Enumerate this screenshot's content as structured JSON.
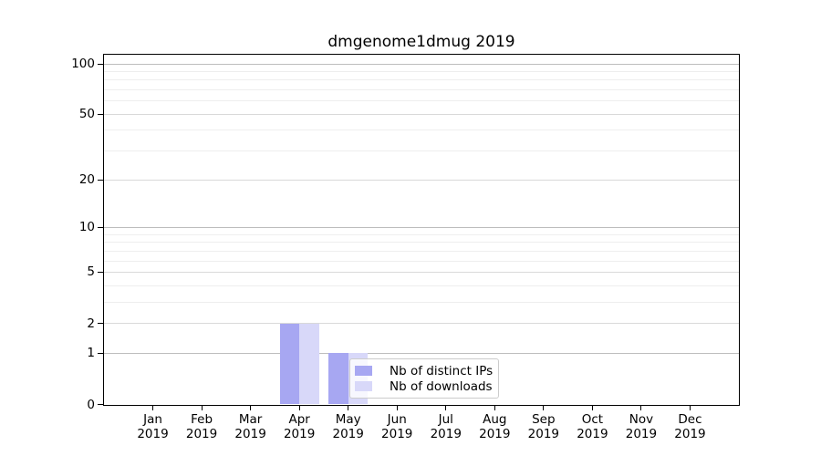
{
  "chart_data": {
    "type": "bar",
    "title": "dmgenome1dmug 2019",
    "categories": [
      "Jan 2019",
      "Feb 2019",
      "Mar 2019",
      "Apr 2019",
      "May 2019",
      "Jun 2019",
      "Jul 2019",
      "Aug 2019",
      "Sep 2019",
      "Oct 2019",
      "Nov 2019",
      "Dec 2019"
    ],
    "series": [
      {
        "name": "Nb of distinct IPs",
        "color": "#a7a7f2",
        "values": [
          0,
          0,
          0,
          2,
          1,
          0,
          0,
          0,
          0,
          0,
          0,
          0
        ]
      },
      {
        "name": "Nb of downloads",
        "color": "#d8d8f9",
        "values": [
          0,
          0,
          0,
          2,
          1,
          0,
          0,
          0,
          0,
          0,
          0,
          0
        ]
      }
    ],
    "xlabel": "",
    "ylabel": "",
    "yscale": "log1p",
    "ylim": [
      0,
      114
    ],
    "yticks": [
      0,
      1,
      2,
      5,
      10,
      20,
      50,
      100
    ],
    "grid_minor_values": [
      3,
      4,
      6,
      7,
      8,
      9,
      30,
      40,
      60,
      70,
      80,
      90
    ],
    "grid": "on",
    "legend_position": "lower-center",
    "colors": {
      "axis": "#000000",
      "grid_major": "#bdbdbd",
      "grid_labeled": "#d9d9d9",
      "grid_minor": "#eeeeee",
      "legend_border": "#cccccc"
    }
  }
}
